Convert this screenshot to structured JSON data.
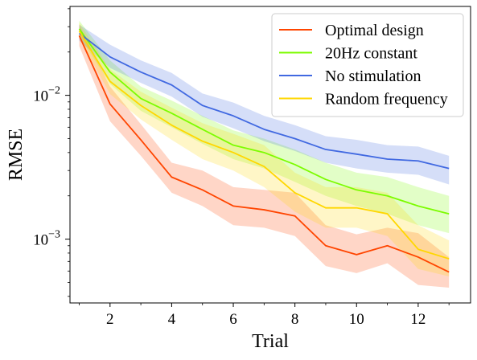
{
  "chart_data": {
    "type": "line",
    "xlabel": "Trial",
    "ylabel": "RMSE",
    "yscale": "log",
    "xlim": [
      0.7,
      13.7
    ],
    "ylim": [
      0.00036,
      0.0415
    ],
    "x": [
      1,
      2,
      3,
      4,
      5,
      6,
      7,
      8,
      9,
      10,
      11,
      12,
      13
    ],
    "xticks": [
      2,
      4,
      6,
      8,
      10,
      12
    ],
    "xtick_labels": [
      "2",
      "4",
      "6",
      "8",
      "10",
      "12"
    ],
    "yticks": [
      0.01,
      0.001
    ],
    "ytick_labels": [
      {
        "base": "10",
        "exp": "−2"
      },
      {
        "base": "10",
        "exp": "−3"
      }
    ],
    "legend_position": "top-right",
    "grid": false,
    "series": [
      {
        "name": "Optimal design",
        "color": "#ff4500",
        "values": [
          0.026,
          0.0087,
          0.0049,
          0.0027,
          0.0022,
          0.0017,
          0.0016,
          0.00145,
          0.0009,
          0.00078,
          0.0009,
          0.00075,
          0.00059
        ],
        "lower": [
          0.022,
          0.0066,
          0.0038,
          0.0021,
          0.0017,
          0.00125,
          0.0012,
          0.00105,
          0.00065,
          0.00058,
          0.00068,
          0.00048,
          0.00046
        ],
        "upper": [
          0.031,
          0.0115,
          0.0063,
          0.0034,
          0.003,
          0.0023,
          0.0022,
          0.0021,
          0.00125,
          0.00108,
          0.0012,
          0.0011,
          0.00075
        ]
      },
      {
        "name": "20Hz constant",
        "color": "#7cfc00",
        "values": [
          0.029,
          0.0145,
          0.0095,
          0.0075,
          0.0058,
          0.0045,
          0.004,
          0.0033,
          0.0026,
          0.0022,
          0.002,
          0.0017,
          0.0015
        ],
        "lower": [
          0.026,
          0.012,
          0.0078,
          0.006,
          0.0046,
          0.0036,
          0.0031,
          0.0025,
          0.002,
          0.0017,
          0.0015,
          0.00125,
          0.0011
        ],
        "upper": [
          0.033,
          0.0175,
          0.0115,
          0.0092,
          0.0072,
          0.0057,
          0.005,
          0.0042,
          0.0034,
          0.0029,
          0.0027,
          0.0023,
          0.002
        ]
      },
      {
        "name": "No stimulation",
        "color": "#4169e1",
        "values": [
          0.027,
          0.0185,
          0.0145,
          0.0118,
          0.0085,
          0.0072,
          0.0058,
          0.005,
          0.0042,
          0.0039,
          0.0036,
          0.0035,
          0.0031
        ],
        "lower": [
          0.024,
          0.0155,
          0.0122,
          0.0098,
          0.0071,
          0.0059,
          0.0048,
          0.0041,
          0.0034,
          0.0031,
          0.0029,
          0.0028,
          0.0024
        ],
        "upper": [
          0.031,
          0.0225,
          0.0175,
          0.0143,
          0.0103,
          0.0089,
          0.0072,
          0.0062,
          0.0052,
          0.0049,
          0.0045,
          0.0044,
          0.0038
        ]
      },
      {
        "name": "Random frequency",
        "color": "#ffd700",
        "values": [
          0.028,
          0.0125,
          0.0085,
          0.0062,
          0.0048,
          0.004,
          0.0032,
          0.0021,
          0.00165,
          0.00165,
          0.0015,
          0.00085,
          0.00073
        ],
        "lower": [
          0.025,
          0.0102,
          0.0068,
          0.0049,
          0.0036,
          0.003,
          0.0023,
          0.00155,
          0.0012,
          0.0012,
          0.00105,
          0.00062,
          0.00055
        ],
        "upper": [
          0.032,
          0.0152,
          0.0106,
          0.0082,
          0.0064,
          0.0054,
          0.0045,
          0.0029,
          0.0023,
          0.0023,
          0.0021,
          0.00125,
          0.00098
        ]
      }
    ]
  }
}
